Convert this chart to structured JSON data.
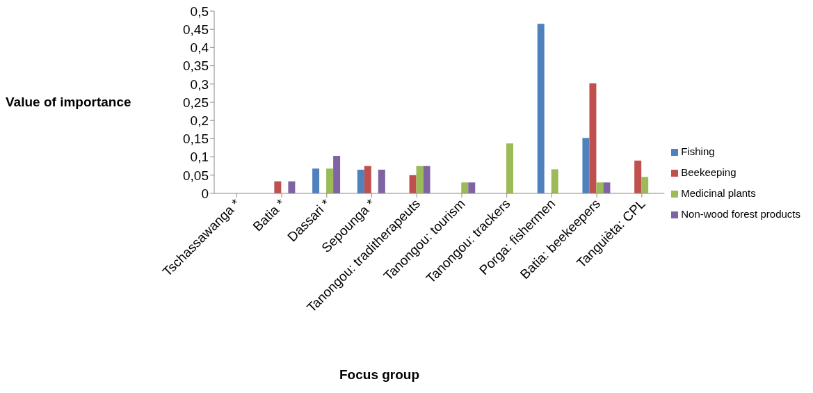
{
  "chart_data": {
    "type": "bar",
    "xlabel": "Focus group",
    "ylabel": "Value of importance",
    "categories": [
      "Tschassawanga *",
      "Batia *",
      "Dassari *",
      "Sepounga *",
      "Tanongou: traditherapeuts",
      "Tanongou: tourism",
      "Tanongou: trackers",
      "Porga: fishermen",
      "Batia: beekeepers",
      "Tanguièta: CPL"
    ],
    "series": [
      {
        "name": "Fishing",
        "color": "#4f81bd",
        "values": [
          null,
          null,
          0.068,
          0.065,
          null,
          null,
          null,
          0.465,
          0.152,
          null
        ]
      },
      {
        "name": "Beekeeping",
        "color": "#c0504d",
        "values": [
          null,
          0.033,
          null,
          0.075,
          0.05,
          null,
          null,
          null,
          0.302,
          0.09
        ]
      },
      {
        "name": "Medicinal plants",
        "color": "#9bbb59",
        "values": [
          null,
          null,
          0.068,
          null,
          0.075,
          0.03,
          0.137,
          0.066,
          0.03,
          0.045
        ]
      },
      {
        "name": "Non-wood forest products",
        "color": "#8064a2",
        "values": [
          null,
          0.033,
          0.103,
          0.065,
          0.075,
          0.03,
          null,
          null,
          0.03,
          null
        ]
      }
    ],
    "ylim": [
      0,
      0.5
    ],
    "yticks": [
      {
        "value": 0,
        "label": "0"
      },
      {
        "value": 0.05,
        "label": "0,05"
      },
      {
        "value": 0.1,
        "label": "0,1"
      },
      {
        "value": 0.15,
        "label": "0,15"
      },
      {
        "value": 0.2,
        "label": "0,2"
      },
      {
        "value": 0.25,
        "label": "0,25"
      },
      {
        "value": 0.3,
        "label": "0,3"
      },
      {
        "value": 0.35,
        "label": "0,35"
      },
      {
        "value": 0.4,
        "label": "0,4"
      },
      {
        "value": 0.45,
        "label": "0,45"
      },
      {
        "value": 0.5,
        "label": "0,5"
      }
    ],
    "grid": false,
    "legend": "right"
  }
}
